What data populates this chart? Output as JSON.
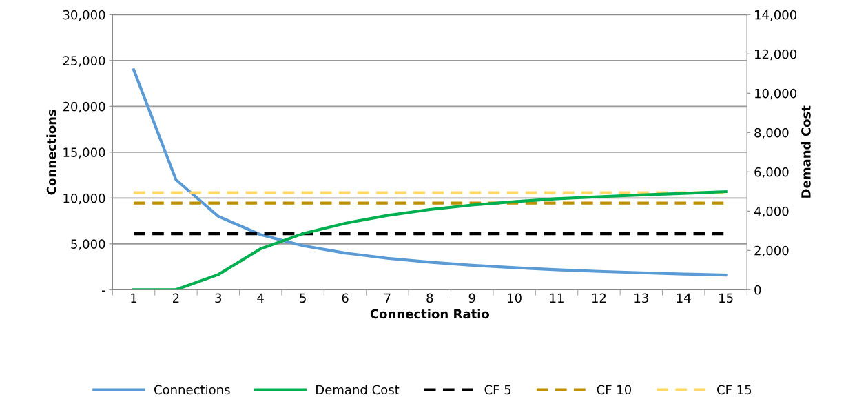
{
  "chart_data": {
    "type": "line",
    "xlabel": "Connection Ratio",
    "ylabel": "Connections",
    "y2label": "Demand Cost",
    "categories": [
      "1",
      "2",
      "3",
      "4",
      "5",
      "6",
      "7",
      "8",
      "9",
      "10",
      "11",
      "12",
      "13",
      "14",
      "15"
    ],
    "ylim": [
      0,
      30000
    ],
    "yticks": [
      {
        "value": 0,
        "label": "-"
      },
      {
        "value": 5000,
        "label": "5,000"
      },
      {
        "value": 10000,
        "label": "10,000"
      },
      {
        "value": 15000,
        "label": "15,000"
      },
      {
        "value": 20000,
        "label": "20,000"
      },
      {
        "value": 25000,
        "label": "25,000"
      },
      {
        "value": 30000,
        "label": "30,000"
      }
    ],
    "y2lim": [
      0,
      14000
    ],
    "y2ticks": [
      0,
      {
        "value": 2000,
        "label": "2,000"
      },
      {
        "value": 4000,
        "label": "4,000"
      },
      {
        "value": 6000,
        "label": "6,000"
      },
      {
        "value": 8000,
        "label": "8,000"
      },
      {
        "value": 10000,
        "label": "10,000"
      },
      {
        "value": 12000,
        "label": "12,000"
      },
      {
        "value": 14000,
        "label": "14,000"
      }
    ],
    "grid": "y",
    "legend": "bottom",
    "marker": "none",
    "series": [
      {
        "name": "Connections",
        "color": "#5b9bd5",
        "line_style": "solid",
        "values": [
          24000,
          12000,
          8000,
          6000,
          4800,
          4000,
          3430,
          3000,
          2670,
          2400,
          2180,
          2000,
          1850,
          1710,
          1600
        ]
      },
      {
        "name": "Demand Cost",
        "color": "#00b050",
        "line_style": "solid",
        "axis": "y2",
        "values": [
          0,
          0,
          770,
          2080,
          2850,
          3380,
          3780,
          4080,
          4310,
          4480,
          4630,
          4730,
          4820,
          4900,
          4990
        ]
      },
      {
        "name": "CF 5",
        "color": "#000000",
        "line_style": "dashed",
        "values": [
          6100,
          6100,
          6100,
          6100,
          6100,
          6100,
          6100,
          6100,
          6100,
          6100,
          6100,
          6100,
          6100,
          6100,
          6100
        ]
      },
      {
        "name": "CF 10",
        "color": "#bf9000",
        "line_style": "dashed",
        "values": [
          9450,
          9450,
          9450,
          9450,
          9450,
          9450,
          9450,
          9450,
          9450,
          9450,
          9450,
          9450,
          9450,
          9450,
          9450
        ]
      },
      {
        "name": "CF 15",
        "color": "#ffd966",
        "line_style": "dashed",
        "values": [
          10580,
          10580,
          10580,
          10580,
          10580,
          10580,
          10580,
          10580,
          10580,
          10580,
          10580,
          10580,
          10580,
          10580,
          10580
        ]
      }
    ]
  }
}
